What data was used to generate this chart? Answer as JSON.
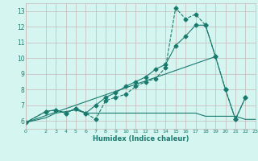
{
  "xlabel": "Humidex (Indice chaleur)",
  "bg_color": "#d4f5f0",
  "grid_color": "#c8b8b8",
  "line_color": "#1a7a6e",
  "xlim": [
    0,
    23
  ],
  "ylim": [
    5.5,
    13.5
  ],
  "xticks": [
    0,
    2,
    3,
    4,
    5,
    6,
    7,
    8,
    9,
    10,
    11,
    12,
    13,
    14,
    15,
    16,
    17,
    18,
    19,
    20,
    21,
    22,
    23
  ],
  "yticks": [
    6,
    7,
    8,
    9,
    10,
    11,
    12,
    13
  ],
  "series": [
    {
      "x": [
        0,
        2,
        3,
        4,
        5,
        6,
        7,
        8,
        9,
        10,
        11,
        12,
        13,
        14,
        15,
        16,
        17,
        18,
        19,
        20,
        21,
        22,
        23
      ],
      "y": [
        5.9,
        6.6,
        6.7,
        6.5,
        6.8,
        6.5,
        6.1,
        7.3,
        7.5,
        7.7,
        8.2,
        8.5,
        8.7,
        9.4,
        13.2,
        12.5,
        12.8,
        12.1,
        10.1,
        8.0,
        6.1,
        7.5,
        null
      ],
      "marker": "D",
      "linestyle": "--",
      "markersize": 2.5
    },
    {
      "x": [
        0,
        2,
        3,
        4,
        5,
        6,
        7,
        8,
        9,
        10,
        11,
        12,
        13,
        14,
        15,
        16,
        17,
        18,
        19,
        20,
        21,
        22,
        23
      ],
      "y": [
        5.9,
        6.6,
        6.7,
        6.5,
        6.8,
        6.5,
        7.0,
        7.5,
        7.8,
        8.2,
        8.5,
        8.8,
        9.3,
        9.6,
        10.8,
        11.4,
        12.1,
        12.1,
        10.1,
        8.0,
        6.1,
        7.5,
        null
      ],
      "marker": "D",
      "linestyle": "-",
      "markersize": 2.5
    },
    {
      "x": [
        0,
        2,
        3,
        4,
        5,
        6,
        7,
        8,
        9,
        10,
        11,
        12,
        13,
        14,
        15,
        16,
        17,
        18,
        19,
        20,
        21,
        22,
        23
      ],
      "y": [
        5.9,
        6.2,
        6.5,
        6.6,
        6.7,
        6.5,
        6.5,
        6.5,
        6.5,
        6.5,
        6.5,
        6.5,
        6.5,
        6.5,
        6.5,
        6.5,
        6.5,
        6.3,
        6.3,
        6.3,
        6.3,
        6.1,
        6.1
      ],
      "marker": "",
      "linestyle": "-",
      "markersize": 0
    },
    {
      "x": [
        0,
        19
      ],
      "y": [
        5.9,
        10.1
      ],
      "marker": "",
      "linestyle": "-",
      "markersize": 0
    }
  ]
}
